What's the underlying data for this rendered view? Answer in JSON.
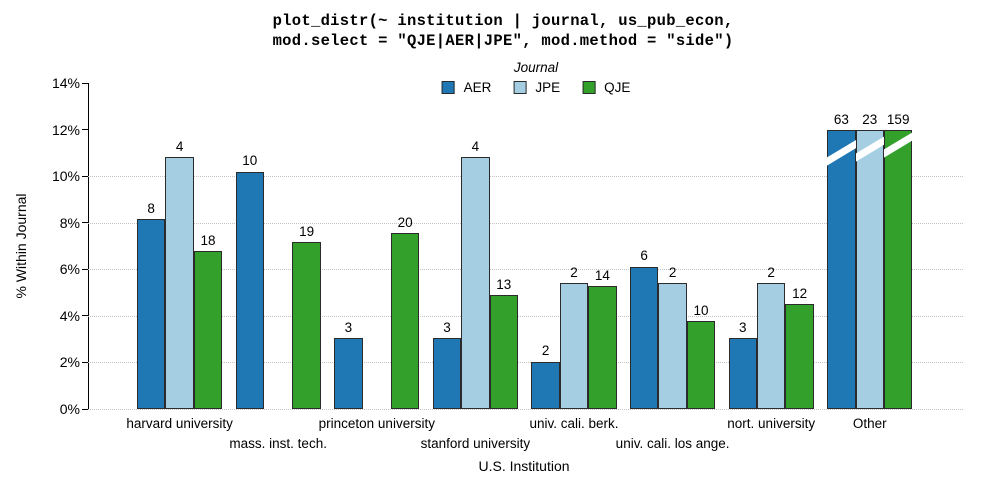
{
  "chart_data": {
    "type": "bar",
    "title_line1": "plot_distr(~ institution | journal, us_pub_econ,",
    "title_line2": "mod.select = \"QJE|AER|JPE\", mod.method = \"side\")",
    "legend_title": "Journal",
    "xlabel": "U.S. Institution",
    "ylabel": "% Within Journal",
    "ylim": [
      0,
      14
    ],
    "y_ticks": [
      {
        "value": 0,
        "label": "0%"
      },
      {
        "value": 2,
        "label": "2%"
      },
      {
        "value": 4,
        "label": "4%"
      },
      {
        "value": 6,
        "label": "6%"
      },
      {
        "value": 8,
        "label": "8%"
      },
      {
        "value": 10,
        "label": "10%"
      },
      {
        "value": 12,
        "label": "12%"
      },
      {
        "value": 14,
        "label": "14%"
      }
    ],
    "gridlines_pct": [
      0,
      2,
      4,
      6,
      8,
      10
    ],
    "grid_style": "dotted",
    "legend_position": "top-center",
    "categories": [
      "harvard university",
      "mass. inst. tech.",
      "princeton university",
      "stanford university",
      "univ. cali. berk.",
      "univ. cali. los ange.",
      "nort. university",
      "Other"
    ],
    "category_label_row": [
      1,
      2,
      1,
      2,
      1,
      2,
      1,
      1
    ],
    "series": [
      {
        "name": "AER",
        "color": "#1f78b4",
        "counts": [
          8,
          10,
          3,
          3,
          2,
          6,
          3,
          63
        ],
        "pct": [
          8.16,
          10.2,
          3.06,
          3.06,
          2.04,
          6.12,
          3.06,
          64.29
        ]
      },
      {
        "name": "JPE",
        "color": "#a6cee3",
        "counts": [
          4,
          null,
          null,
          4,
          2,
          2,
          2,
          23
        ],
        "pct": [
          10.81,
          null,
          null,
          10.81,
          5.41,
          5.41,
          5.41,
          62.16
        ]
      },
      {
        "name": "QJE",
        "color": "#33a02c",
        "counts": [
          18,
          19,
          20,
          13,
          14,
          10,
          12,
          159
        ],
        "pct": [
          6.79,
          7.17,
          7.55,
          4.91,
          5.28,
          3.77,
          4.53,
          60.0
        ]
      }
    ],
    "truncated_display_pct": 12.0,
    "truncated_categories": [
      "Other"
    ]
  }
}
